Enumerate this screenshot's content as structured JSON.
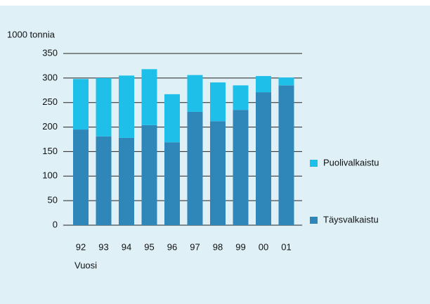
{
  "chart_data": {
    "type": "stacked_bar",
    "y_label": "1000 tonnia",
    "x_label": "Vuosi",
    "categories": [
      "92",
      "93",
      "94",
      "95",
      "96",
      "97",
      "98",
      "99",
      "00",
      "01"
    ],
    "series": [
      {
        "name": "Täysvalkaistu",
        "color": "#2f86b8",
        "values": [
          195,
          181,
          178,
          204,
          169,
          231,
          212,
          235,
          271,
          285
        ]
      },
      {
        "name": "Puolivalkaistu",
        "color": "#1ec0ea",
        "values": [
          103,
          119,
          127,
          114,
          98,
          75,
          79,
          50,
          33,
          16
        ]
      }
    ],
    "ylim": [
      0,
      350
    ],
    "yticks": [
      0,
      50,
      100,
      150,
      200,
      250,
      300,
      350
    ],
    "grid": true
  }
}
